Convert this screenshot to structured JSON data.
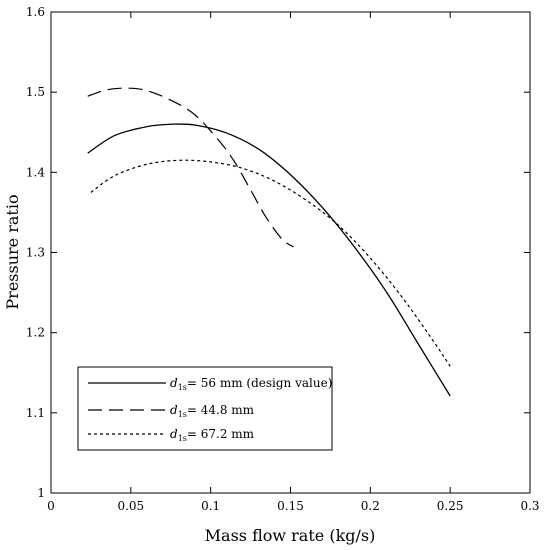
{
  "chart_data": {
    "type": "line",
    "title": "",
    "xlabel": "Mass flow rate (kg/s)",
    "ylabel": "Pressure ratio",
    "xlim": [
      0,
      0.3
    ],
    "ylim": [
      1,
      1.6
    ],
    "xticks": [
      "0",
      "0.05",
      "0.1",
      "0.15",
      "0.2",
      "0.25",
      "0.3"
    ],
    "yticks": [
      "1",
      "1.1",
      "1.2",
      "1.3",
      "1.4",
      "1.5",
      "1.6"
    ],
    "grid": false,
    "legend_position": "bottom-left",
    "series": [
      {
        "legend_var": "d",
        "legend_sub": "1s",
        "legend_suffix": "= 56 mm  (design value)",
        "line_style": "solid",
        "x": [
          0.023,
          0.04,
          0.06,
          0.075,
          0.09,
          0.11,
          0.13,
          0.15,
          0.17,
          0.19,
          0.21,
          0.23,
          0.25
        ],
        "y": [
          1.424,
          1.446,
          1.457,
          1.46,
          1.459,
          1.449,
          1.429,
          1.397,
          1.356,
          1.307,
          1.251,
          1.186,
          1.121
        ]
      },
      {
        "legend_var": "d",
        "legend_sub": "1s",
        "legend_suffix": "= 44.8 mm",
        "line_style": "dashed",
        "x": [
          0.023,
          0.035,
          0.048,
          0.06,
          0.075,
          0.09,
          0.105,
          0.115,
          0.125,
          0.135,
          0.145,
          0.152
        ],
        "y": [
          1.495,
          1.503,
          1.505,
          1.502,
          1.49,
          1.472,
          1.44,
          1.413,
          1.378,
          1.343,
          1.316,
          1.307
        ]
      },
      {
        "legend_var": "d",
        "legend_sub": "1s",
        "legend_suffix": "= 67.2 mm",
        "line_style": "dotted",
        "x": [
          0.025,
          0.04,
          0.06,
          0.08,
          0.1,
          0.12,
          0.14,
          0.16,
          0.18,
          0.2,
          0.22,
          0.24,
          0.25
        ],
        "y": [
          1.375,
          1.396,
          1.41,
          1.415,
          1.413,
          1.405,
          1.389,
          1.365,
          1.334,
          1.293,
          1.244,
          1.188,
          1.158
        ]
      }
    ]
  }
}
